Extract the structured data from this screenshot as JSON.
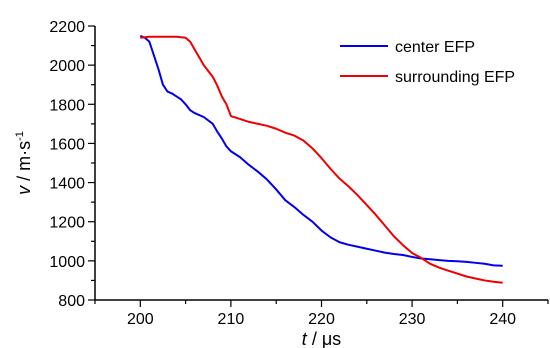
{
  "chart_data": {
    "type": "line",
    "xlabel": {
      "var": "t",
      "unit": "μs"
    },
    "ylabel": {
      "var": "v",
      "unit": "m·s",
      "exp": "-1"
    },
    "xlim": [
      195,
      245
    ],
    "ylim": [
      800,
      2200
    ],
    "xticks": [
      200,
      210,
      220,
      230,
      240
    ],
    "yticks": [
      800,
      1000,
      1200,
      1400,
      1600,
      1800,
      2000,
      2200
    ],
    "legend_position": "top-right",
    "series": [
      {
        "name": "center EFP",
        "color": "#0000ee",
        "points": [
          [
            200,
            2150
          ],
          [
            200.5,
            2140
          ],
          [
            201,
            2120
          ],
          [
            201.5,
            2050
          ],
          [
            202,
            1980
          ],
          [
            202.5,
            1900
          ],
          [
            203,
            1865
          ],
          [
            203.5,
            1855
          ],
          [
            204,
            1840
          ],
          [
            204.5,
            1825
          ],
          [
            205,
            1800
          ],
          [
            205.5,
            1770
          ],
          [
            206,
            1755
          ],
          [
            207,
            1735
          ],
          [
            208,
            1700
          ],
          [
            208.5,
            1660
          ],
          [
            209,
            1625
          ],
          [
            209.5,
            1585
          ],
          [
            210,
            1560
          ],
          [
            211,
            1530
          ],
          [
            212,
            1490
          ],
          [
            213,
            1455
          ],
          [
            214,
            1415
          ],
          [
            215,
            1365
          ],
          [
            216,
            1310
          ],
          [
            217,
            1275
          ],
          [
            218,
            1235
          ],
          [
            219,
            1200
          ],
          [
            220,
            1155
          ],
          [
            221,
            1120
          ],
          [
            222,
            1095
          ],
          [
            223,
            1082
          ],
          [
            224,
            1072
          ],
          [
            225,
            1062
          ],
          [
            226,
            1052
          ],
          [
            227,
            1042
          ],
          [
            228,
            1035
          ],
          [
            229,
            1030
          ],
          [
            230,
            1020
          ],
          [
            231,
            1012
          ],
          [
            232,
            1008
          ],
          [
            233,
            1004
          ],
          [
            234,
            1000
          ],
          [
            235,
            998
          ],
          [
            236,
            995
          ],
          [
            237,
            990
          ],
          [
            238,
            985
          ],
          [
            239,
            977
          ],
          [
            240,
            975
          ]
        ]
      },
      {
        "name": "surrounding EFP",
        "color": "#ee0000",
        "points": [
          [
            200,
            2140
          ],
          [
            201,
            2145
          ],
          [
            202,
            2145
          ],
          [
            203,
            2145
          ],
          [
            204,
            2145
          ],
          [
            205,
            2140
          ],
          [
            205.5,
            2120
          ],
          [
            206,
            2080
          ],
          [
            206.5,
            2040
          ],
          [
            207,
            2000
          ],
          [
            208,
            1940
          ],
          [
            208.5,
            1895
          ],
          [
            209,
            1840
          ],
          [
            209.5,
            1800
          ],
          [
            210,
            1740
          ],
          [
            211,
            1725
          ],
          [
            212,
            1710
          ],
          [
            213,
            1700
          ],
          [
            214,
            1690
          ],
          [
            215,
            1675
          ],
          [
            216,
            1655
          ],
          [
            217,
            1640
          ],
          [
            218,
            1615
          ],
          [
            219,
            1575
          ],
          [
            220,
            1525
          ],
          [
            221,
            1470
          ],
          [
            222,
            1420
          ],
          [
            223,
            1380
          ],
          [
            224,
            1335
          ],
          [
            225,
            1285
          ],
          [
            226,
            1235
          ],
          [
            227,
            1180
          ],
          [
            228,
            1125
          ],
          [
            229,
            1080
          ],
          [
            230,
            1040
          ],
          [
            231,
            1015
          ],
          [
            232,
            985
          ],
          [
            233,
            965
          ],
          [
            234,
            950
          ],
          [
            235,
            935
          ],
          [
            236,
            920
          ],
          [
            237,
            910
          ],
          [
            238,
            900
          ],
          [
            239,
            893
          ],
          [
            240,
            888
          ]
        ]
      }
    ]
  }
}
